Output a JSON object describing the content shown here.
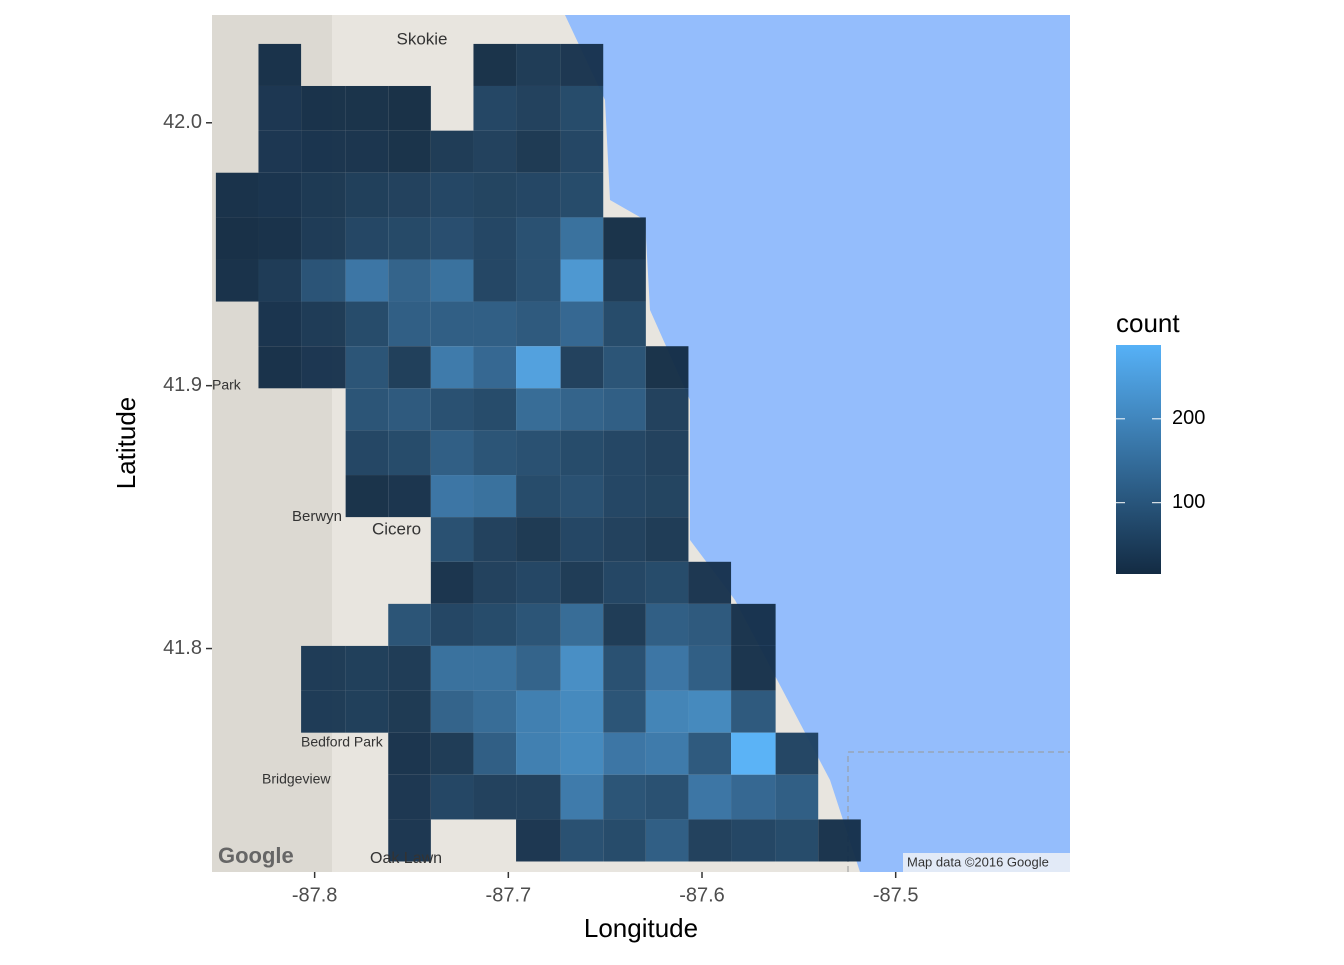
{
  "chart_data": {
    "type": "heatmap",
    "x_label": "Longitude",
    "y_label": "Latitude",
    "legend_title": "count",
    "xlim": [
      -87.853,
      -87.41
    ],
    "ylim": [
      41.715,
      42.041
    ],
    "xticks": [
      -87.8,
      -87.7,
      -87.6,
      -87.5
    ],
    "yticks": [
      41.8,
      41.9,
      {
        "value": 42.0,
        "label": "42.0"
      }
    ],
    "x_bins": [
      -87.851,
      -87.829,
      -87.807,
      -87.784,
      -87.762,
      -87.74,
      -87.718,
      -87.696,
      -87.673,
      -87.651,
      -87.629,
      -87.607,
      -87.585,
      -87.562,
      -87.54,
      -87.518
    ],
    "y_bins": [
      42.03,
      42.014,
      41.997,
      41.981,
      41.964,
      41.948,
      41.932,
      41.915,
      41.899,
      41.883,
      41.866,
      41.85,
      41.833,
      41.817,
      41.801,
      41.784,
      41.768,
      41.752,
      41.735,
      41.719
    ],
    "counts": [
      [
        null,
        20,
        null,
        null,
        null,
        null,
        20,
        40,
        30,
        null,
        null,
        null,
        null,
        null,
        null
      ],
      [
        null,
        30,
        20,
        20,
        15,
        null,
        60,
        50,
        70,
        null,
        null,
        null,
        null,
        null,
        null
      ],
      [
        null,
        30,
        25,
        25,
        20,
        40,
        50,
        35,
        60,
        null,
        null,
        null,
        null,
        null,
        null
      ],
      [
        20,
        25,
        35,
        45,
        50,
        60,
        55,
        60,
        70,
        null,
        null,
        null,
        null,
        null,
        null
      ],
      [
        15,
        20,
        40,
        60,
        65,
        75,
        60,
        80,
        150,
        20,
        null,
        null,
        null,
        null,
        null
      ],
      [
        20,
        40,
        90,
        160,
        120,
        150,
        60,
        80,
        230,
        40,
        null,
        null,
        null,
        null,
        null
      ],
      [
        null,
        25,
        40,
        70,
        110,
        110,
        110,
        100,
        130,
        70,
        null,
        null,
        null,
        null,
        null
      ],
      [
        null,
        20,
        30,
        90,
        45,
        170,
        130,
        250,
        50,
        90,
        20,
        null,
        null,
        null,
        null
      ],
      [
        null,
        null,
        null,
        90,
        100,
        80,
        70,
        140,
        120,
        110,
        50,
        null,
        null,
        null,
        null
      ],
      [
        null,
        null,
        null,
        60,
        70,
        110,
        90,
        80,
        70,
        60,
        50,
        null,
        null,
        null,
        null
      ],
      [
        null,
        null,
        null,
        20,
        25,
        160,
        150,
        70,
        80,
        60,
        55,
        null,
        null,
        null,
        null
      ],
      [
        null,
        null,
        null,
        null,
        null,
        80,
        50,
        35,
        60,
        50,
        40,
        null,
        null,
        null,
        null
      ],
      [
        null,
        null,
        null,
        null,
        null,
        25,
        50,
        60,
        40,
        60,
        70,
        30,
        null,
        null,
        null
      ],
      [
        null,
        null,
        null,
        null,
        90,
        60,
        70,
        90,
        140,
        40,
        110,
        100,
        25,
        null,
        null
      ],
      [
        null,
        null,
        40,
        45,
        40,
        150,
        150,
        120,
        210,
        80,
        160,
        110,
        25,
        null,
        null
      ],
      [
        null,
        null,
        40,
        45,
        35,
        120,
        140,
        180,
        200,
        90,
        190,
        200,
        100,
        null,
        null
      ],
      [
        null,
        null,
        null,
        null,
        25,
        40,
        110,
        180,
        200,
        160,
        170,
        100,
        288,
        60,
        null
      ],
      [
        null,
        null,
        null,
        null,
        30,
        60,
        50,
        50,
        170,
        90,
        80,
        160,
        130,
        110,
        null
      ],
      [
        null,
        null,
        null,
        null,
        30,
        null,
        null,
        30,
        80,
        70,
        110,
        50,
        60,
        70,
        25
      ]
    ],
    "clim": [
      15,
      288
    ],
    "cticks": [
      100,
      200
    ],
    "low_color": "#132B43",
    "high_color": "#56B1F7",
    "map_labels": [
      "Skokie",
      "Park",
      "Berwyn",
      "Cicero",
      "Bedford Park",
      "Bridgeview",
      "Oak Lawn",
      "Google",
      "Map data ©2016 Google"
    ]
  }
}
